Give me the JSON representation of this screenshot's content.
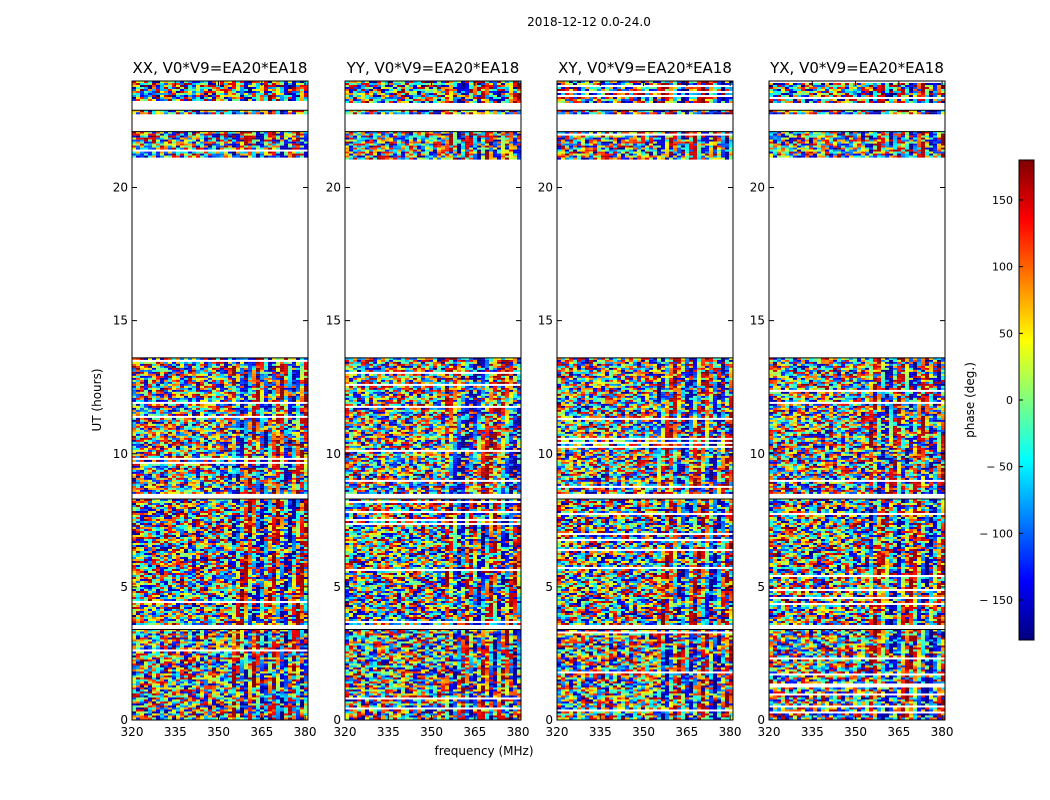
{
  "figure": {
    "suptitle": "2018-12-12 0.0-24.0",
    "shared_xlabel": "frequency (MHz)",
    "shared_ylabel": "UT (hours)"
  },
  "colorbar": {
    "label": "phase (deg.)",
    "range": [
      -180,
      180
    ],
    "ticks": [
      150,
      100,
      50,
      0,
      -50,
      -100,
      -150
    ],
    "tick_labels": [
      "150",
      "100",
      "50",
      "0",
      "− 50",
      "− 100",
      "− 150"
    ],
    "colormap": "jet",
    "colors": [
      "#00007f",
      "#0000ff",
      "#007fff",
      "#00ffff",
      "#7fff7f",
      "#ffff00",
      "#ff7f00",
      "#ff0000",
      "#7f0000"
    ]
  },
  "chart_data": [
    {
      "type": "heatmap",
      "title": "XX, V0*V9=EA20*EA18",
      "xlabel": "",
      "ylabel": "UT (hours)",
      "xlim": [
        320,
        381
      ],
      "ylim": [
        0,
        24
      ],
      "xticks": [
        320,
        335,
        350,
        365,
        380
      ],
      "yticks": [
        0,
        5,
        10,
        15,
        20
      ],
      "value": "phase (deg.)",
      "data_blocks_ut": [
        [
          0,
          3.4
        ],
        [
          3.6,
          8.3
        ],
        [
          8.5,
          13.6
        ],
        [
          21.1,
          22.1
        ],
        [
          22.8,
          22.9
        ],
        [
          23.2,
          24
        ]
      ],
      "blank_ut": [
        [
          13.6,
          21.1
        ],
        [
          22.1,
          22.8
        ],
        [
          22.9,
          23.2
        ]
      ]
    },
    {
      "type": "heatmap",
      "title": "YY, V0*V9=EA20*EA18",
      "xlabel": "",
      "ylabel": "",
      "xlim": [
        320,
        381
      ],
      "ylim": [
        0,
        24
      ],
      "xticks": [
        320,
        335,
        350,
        365,
        380
      ],
      "yticks": [
        0,
        5,
        10,
        15,
        20
      ],
      "value": "phase (deg.)",
      "data_blocks_ut": [
        [
          0,
          3.4
        ],
        [
          3.6,
          8.3
        ],
        [
          8.5,
          13.6
        ],
        [
          21.1,
          22.1
        ],
        [
          22.8,
          22.9
        ],
        [
          23.2,
          24
        ]
      ],
      "blank_ut": [
        [
          13.6,
          21.1
        ],
        [
          22.1,
          22.8
        ],
        [
          22.9,
          23.2
        ]
      ]
    },
    {
      "type": "heatmap",
      "title": "XY, V0*V9=EA20*EA18",
      "xlabel": "",
      "ylabel": "",
      "xlim": [
        320,
        381
      ],
      "ylim": [
        0,
        24
      ],
      "xticks": [
        320,
        335,
        350,
        365,
        380
      ],
      "yticks": [
        0,
        5,
        10,
        15,
        20
      ],
      "value": "phase (deg.)",
      "data_blocks_ut": [
        [
          0,
          3.4
        ],
        [
          3.6,
          8.3
        ],
        [
          8.5,
          13.6
        ],
        [
          21.1,
          22.1
        ],
        [
          22.8,
          22.9
        ],
        [
          23.2,
          24
        ]
      ],
      "blank_ut": [
        [
          13.6,
          21.1
        ],
        [
          22.1,
          22.8
        ],
        [
          22.9,
          23.2
        ]
      ]
    },
    {
      "type": "heatmap",
      "title": "YX, V0*V9=EA20*EA18",
      "xlabel": "",
      "ylabel": "",
      "xlim": [
        320,
        381
      ],
      "ylim": [
        0,
        24
      ],
      "xticks": [
        320,
        335,
        350,
        365,
        380
      ],
      "yticks": [
        0,
        5,
        10,
        15,
        20
      ],
      "value": "phase (deg.)",
      "data_blocks_ut": [
        [
          0,
          3.4
        ],
        [
          3.6,
          8.3
        ],
        [
          8.5,
          13.6
        ],
        [
          21.1,
          22.1
        ],
        [
          22.8,
          22.9
        ],
        [
          23.2,
          24
        ]
      ],
      "blank_ut": [
        [
          13.6,
          21.1
        ],
        [
          22.1,
          22.8
        ],
        [
          22.9,
          23.2
        ]
      ]
    }
  ]
}
